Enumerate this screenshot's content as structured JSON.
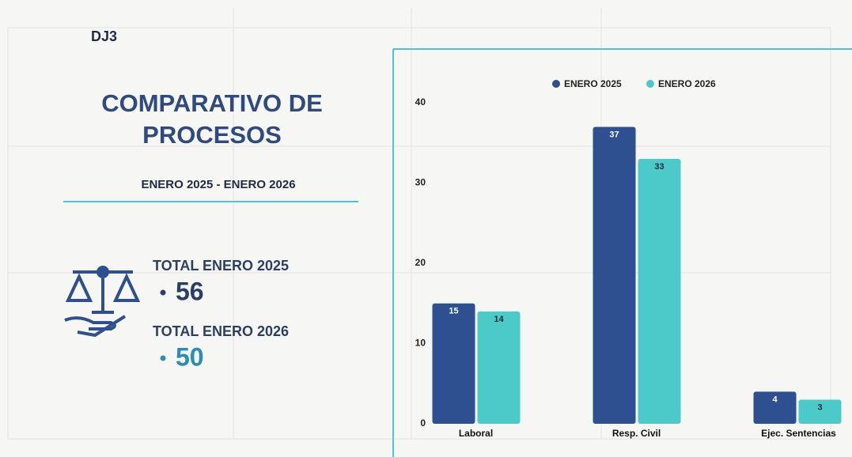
{
  "office": "DJ3",
  "title_lines": [
    "COMPARATIVO DE",
    "PROCESOS"
  ],
  "period": "ENERO 2025 - ENERO 2026",
  "totals": [
    {
      "label": "TOTAL ENERO 2025",
      "value": 56,
      "color": "#2b3f66"
    },
    {
      "label": "TOTAL ENERO 2026",
      "value": 50,
      "color": "#2a8cb8"
    }
  ],
  "chart_data": {
    "type": "bar",
    "categories": [
      "Laboral",
      "Resp. Civil",
      "Ejec. Sentencias"
    ],
    "series": [
      {
        "name": "ENERO 2025",
        "color": "#2e5090",
        "values": [
          15,
          37,
          4
        ]
      },
      {
        "name": "ENERO 2026",
        "color": "#4ccaca",
        "values": [
          14,
          33,
          3
        ]
      }
    ],
    "ylim": [
      0,
      40
    ],
    "yticks": [
      0,
      10,
      20,
      30,
      40
    ],
    "grid": false,
    "legend": "top"
  }
}
